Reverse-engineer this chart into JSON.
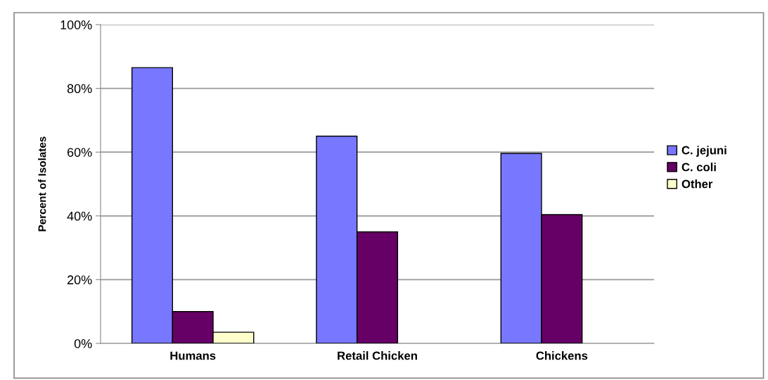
{
  "chart_data": {
    "type": "bar",
    "ylabel": "Percent of Isolates",
    "categories": [
      "Humans",
      "Retail Chicken",
      "Chickens"
    ],
    "series": [
      {
        "name": "C. jejuni",
        "color": "#7777ff",
        "values": [
          86.5,
          65,
          59.6
        ]
      },
      {
        "name": "C. coli",
        "color": "#660066",
        "values": [
          10,
          35,
          40.4
        ]
      },
      {
        "name": "Other",
        "color": "#ffffcc",
        "values": [
          3.5,
          null,
          null
        ]
      }
    ],
    "ylim": [
      0,
      100
    ],
    "yticks": [
      {
        "value": 0,
        "label": "0%"
      },
      {
        "value": 20,
        "label": "20%"
      },
      {
        "value": 40,
        "label": "40%"
      },
      {
        "value": 60,
        "label": "60%"
      },
      {
        "value": 80,
        "label": "80%"
      },
      {
        "value": 100,
        "label": "100%"
      }
    ],
    "grid": "y",
    "legend": "right"
  }
}
